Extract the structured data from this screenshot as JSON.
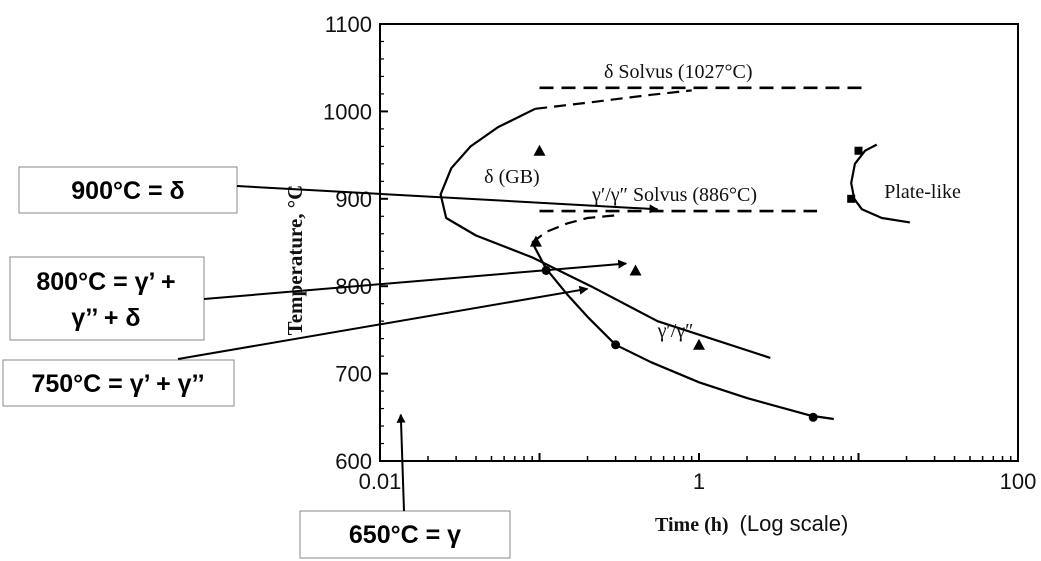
{
  "chart_data": {
    "type": "line",
    "xscale": "log",
    "xlim": [
      0.01,
      100
    ],
    "ylim": [
      600,
      1100
    ],
    "xticks": [
      "0.01",
      "1",
      "100"
    ],
    "yticks": [
      "600",
      "700",
      "800",
      "900",
      "1000",
      "1100"
    ],
    "xlabel_bold": "Time (h)",
    "xlabel_note": "(Log scale)",
    "ylabel": "Temperature, °C",
    "series": [
      {
        "name": "δ (GB)",
        "style": "solid",
        "points": [
          [
            0.094,
            1003
          ],
          [
            0.055,
            982
          ],
          [
            0.037,
            960
          ],
          [
            0.028,
            935
          ],
          [
            0.024,
            905
          ],
          [
            0.026,
            878
          ],
          [
            0.04,
            858
          ],
          [
            0.09,
            833
          ],
          [
            0.21,
            800
          ],
          [
            0.55,
            760
          ],
          [
            2.8,
            718
          ]
        ]
      },
      {
        "name": "δ (GB) upper extension",
        "style": "dashed",
        "points": [
          [
            0.094,
            1003
          ],
          [
            0.2,
            1010
          ],
          [
            0.5,
            1019
          ],
          [
            0.9,
            1024
          ]
        ]
      },
      {
        "name": "γ′/γ″",
        "style": "solid",
        "points": [
          [
            0.09,
            850
          ],
          [
            0.11,
            820
          ],
          [
            0.15,
            790
          ],
          [
            0.2,
            765
          ],
          [
            0.3,
            733
          ],
          [
            0.5,
            713
          ],
          [
            1,
            690
          ],
          [
            2,
            672
          ],
          [
            5,
            652
          ],
          [
            7,
            648
          ]
        ]
      },
      {
        "name": "γ′/γ″ upper extension",
        "style": "dashed",
        "points": [
          [
            0.09,
            850
          ],
          [
            0.11,
            862
          ],
          [
            0.15,
            872
          ],
          [
            0.2,
            878
          ],
          [
            0.3,
            881
          ]
        ]
      },
      {
        "name": "Plate-like",
        "style": "solid",
        "points": [
          [
            13,
            962
          ],
          [
            11,
            955
          ],
          [
            9.5,
            940
          ],
          [
            9,
            918
          ],
          [
            9.4,
            900
          ],
          [
            10.5,
            888
          ],
          [
            14,
            878
          ],
          [
            21,
            873
          ]
        ]
      }
    ],
    "markers": [
      {
        "shape": "triangle",
        "x": 0.1,
        "y": 955
      },
      {
        "shape": "triangle",
        "x": 0.095,
        "y": 851
      },
      {
        "shape": "triangle",
        "x": 0.4,
        "y": 818
      },
      {
        "shape": "triangle",
        "x": 1,
        "y": 733
      },
      {
        "shape": "circle",
        "x": 0.11,
        "y": 818
      },
      {
        "shape": "circle",
        "x": 0.3,
        "y": 733
      },
      {
        "shape": "circle",
        "x": 5.2,
        "y": 650
      },
      {
        "shape": "square",
        "x": 9,
        "y": 900
      },
      {
        "shape": "square",
        "x": 10,
        "y": 955
      }
    ],
    "reference_lines": [
      {
        "label": "δ Solvus (1027°C)",
        "y": 1027,
        "x_from": 0.1,
        "x_to": 10.5,
        "style": "dashed"
      },
      {
        "label": "γ′/γ″ Solvus (886°C)",
        "y": 886,
        "x_from": 0.1,
        "x_to": 5.5,
        "style": "dashed"
      }
    ],
    "plot_labels": [
      {
        "text": "δ (GB)",
        "x": 0.045,
        "y": 918
      },
      {
        "text": "Plate-like",
        "x": 14.5,
        "y": 901
      },
      {
        "text": "γ′/γ″",
        "x": 0.55,
        "y": 742
      }
    ],
    "annotations": [
      {
        "id": "900",
        "text_lines": [
          "900°C = δ"
        ],
        "arrow_to": [
          0.55,
          888
        ]
      },
      {
        "id": "800",
        "text_lines": [
          "800°C = γ’ +",
          "γ’’ +  δ"
        ],
        "arrow_to": [
          0.35,
          826
        ]
      },
      {
        "id": "750",
        "text_lines": [
          "750°C = γ’ + γ’’"
        ],
        "arrow_to": [
          0.2,
          797
        ]
      },
      {
        "id": "650",
        "text_lines": [
          "650°C = γ"
        ],
        "arrow_to": [
          0.0135,
          653
        ]
      }
    ]
  }
}
